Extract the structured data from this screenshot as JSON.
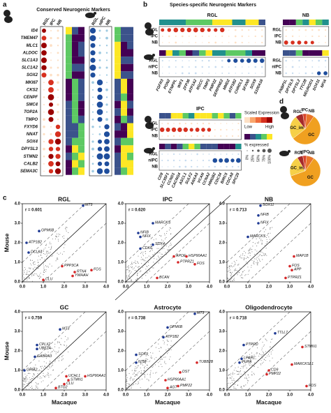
{
  "panel_a": {
    "label": "a",
    "title": "Conserved Neurogenic Markers",
    "genes": [
      "ID4",
      "TMEM47",
      "MLC1",
      "ALDOC",
      "SLC1A3",
      "SLC1A2",
      "SOX2",
      "MKI67",
      "CKS2",
      "CENPF",
      "SMC4",
      "TOP2A",
      "TMPO",
      "FXYD6",
      "NNAT",
      "SOX4",
      "DPYSL3",
      "STMN2",
      "CALB2",
      "SEMA3C"
    ],
    "monkey_columns": [
      "RGL",
      "IPC",
      "NB"
    ],
    "mouse_columns": [
      "RGL",
      "nIPC",
      "NB"
    ]
  },
  "panel_b": {
    "label": "b",
    "title": "Species-specific Neurogenic Markers",
    "blocks": [
      {
        "title": "RGL",
        "genes": [
          "FGFR3",
          "PON2",
          "ETNPPL",
          "WIF1",
          "ZFP36",
          "ATP1A2",
          "RGCC",
          "TIMP3",
          "PMP22",
          "SERPINE2",
          "MMD2",
          "ATP1B2",
          "CHRDL1",
          "SFXN5",
          "SOX9",
          "S100A16"
        ]
      },
      {
        "title": "NB",
        "genes": [
          "FNBP1L",
          "DPYSL5",
          "DPYSL2",
          "TTC28",
          "NEUROD1",
          "SOX11",
          "NFIA"
        ]
      },
      {
        "title": "IPC",
        "genes": [
          "CD9",
          "SLC35F1",
          "CCND1",
          "CACNG4",
          "ASCL1",
          "SULF2",
          "ANXA5",
          "VCAN",
          "CCNA2",
          "HMGB2",
          "CDC34",
          "BIRC5",
          "CDCA8",
          "SPC25"
        ]
      }
    ],
    "monkey_rows": [
      "RGL",
      "IPC",
      "NB"
    ],
    "mouse_rows": [
      "RGL",
      "nIPC",
      "NB"
    ],
    "legend_expression": {
      "title": "Scaled Expression",
      "low": "Low",
      "high": "High"
    },
    "legend_percent": {
      "title": "% expressed",
      "labels": [
        "0%",
        "25%",
        "50%",
        "75%",
        "100%"
      ]
    }
  },
  "panel_c_label": "c",
  "panel_d_label": "d",
  "chart_data": [
    {
      "type": "scatter",
      "title": "RGL",
      "annotation": "r = 0.601",
      "ylabel": "Mouse",
      "xlim": [
        0,
        4
      ],
      "ylim": [
        0,
        4
      ],
      "xticks": [
        {
          "value": 0,
          "label": "0.0"
        },
        {
          "value": 1,
          "label": "1.0"
        },
        {
          "value": 2,
          "label": "2.0"
        },
        {
          "value": 3,
          "label": "3.0"
        },
        {
          "value": 4,
          "label": "4.0"
        }
      ],
      "yticks": [
        {
          "value": 0,
          "label": "0.0"
        },
        {
          "value": 1,
          "label": "1.0"
        },
        {
          "value": 2,
          "label": "2.0"
        },
        {
          "value": 3,
          "label": "3.0"
        },
        {
          "value": 4,
          "label": "4.0"
        }
      ],
      "series": [
        {
          "color": "#1f3a93",
          "labels": [
            "MT3",
            "GPM6B",
            "ATP1B2",
            "DCLK1"
          ],
          "x": [
            2.9,
            0.8,
            0.2,
            0.3
          ],
          "y": [
            3.9,
            2.6,
            2.0,
            1.5
          ]
        },
        {
          "color": "#d62728",
          "labels": [
            "PPP3CA",
            "FOS",
            "RTN4",
            "YWHAH",
            "CLU"
          ],
          "x": [
            1.9,
            3.3,
            2.5,
            2.4,
            1.0
          ],
          "y": [
            0.8,
            0.6,
            0.5,
            0.3,
            0.1
          ]
        }
      ]
    },
    {
      "type": "scatter",
      "title": "IPC",
      "annotation": "r = 0.620",
      "xlim": [
        0,
        4
      ],
      "ylim": [
        0,
        4
      ],
      "xticks": [
        {
          "value": 0,
          "label": "0.0"
        },
        {
          "value": 1,
          "label": "1.0"
        },
        {
          "value": 2,
          "label": "2.0"
        },
        {
          "value": 3,
          "label": "3.0"
        },
        {
          "value": 4,
          "label": "4.0"
        }
      ],
      "yticks": [
        {
          "value": 0,
          "label": "0.0"
        },
        {
          "value": 1,
          "label": "1.0"
        },
        {
          "value": 2,
          "label": "2.0"
        },
        {
          "value": 3,
          "label": "3.0"
        },
        {
          "value": 4,
          "label": "4.0"
        }
      ],
      "series": [
        {
          "color": "#1f3a93",
          "labels": [
            "MARCKS",
            "NFIB",
            "NFIX",
            "SOX4",
            "CDK6"
          ],
          "x": [
            1.3,
            0.6,
            0.7,
            1.3,
            0.7
          ],
          "y": [
            3.0,
            2.5,
            2.3,
            1.9,
            1.7
          ]
        },
        {
          "color": "#d62728",
          "labels": [
            "APOE",
            "HSP90AA1",
            "PTPRZ1",
            "FOS",
            "BCAN"
          ],
          "x": [
            2.3,
            2.9,
            2.5,
            3.3,
            1.5
          ],
          "y": [
            1.3,
            1.3,
            1.0,
            0.9,
            0.2
          ]
        }
      ]
    },
    {
      "type": "scatter",
      "title": "NB",
      "annotation": "r = 0.713",
      "xlim": [
        0,
        4
      ],
      "ylim": [
        0,
        4
      ],
      "xticks": [
        {
          "value": 0,
          "label": "0.0"
        },
        {
          "value": 1,
          "label": "1.0"
        },
        {
          "value": 2,
          "label": "2.0"
        },
        {
          "value": 3,
          "label": "3.0"
        },
        {
          "value": 4,
          "label": "4.0"
        }
      ],
      "yticks": [
        {
          "value": 0,
          "label": "0.0"
        },
        {
          "value": 1,
          "label": "1.0"
        },
        {
          "value": 2,
          "label": "2.0"
        },
        {
          "value": 3,
          "label": "3.0"
        },
        {
          "value": 4,
          "label": "4.0"
        }
      ],
      "series": [
        {
          "color": "#1f3a93",
          "labels": [
            "SOX11",
            "NFIB",
            "NFIX",
            "MARCKS"
          ],
          "x": [
            1.6,
            1.5,
            1.5,
            1.0
          ],
          "y": [
            3.9,
            3.4,
            3.0,
            2.3
          ]
        },
        {
          "color": "#d62728",
          "labels": [
            "MAP1B",
            "FOS",
            "APP",
            "PTPRZ1"
          ],
          "x": [
            3.2,
            3.0,
            3.1,
            2.8
          ],
          "y": [
            1.3,
            0.8,
            0.6,
            0.2
          ]
        }
      ]
    },
    {
      "type": "scatter",
      "title": "GC",
      "annotation": "r = 0.759",
      "xlabel": "Macaque",
      "ylabel": "Mouse",
      "xlim": [
        0,
        4
      ],
      "ylim": [
        0,
        4
      ],
      "xticks": [
        {
          "value": 0,
          "label": "0.0"
        },
        {
          "value": 1,
          "label": "1.0"
        },
        {
          "value": 2,
          "label": "2.0"
        },
        {
          "value": 3,
          "label": "3.0"
        },
        {
          "value": 4,
          "label": "4.0"
        }
      ],
      "yticks": [
        {
          "value": 0,
          "label": "0.0"
        },
        {
          "value": 1,
          "label": "1.0"
        },
        {
          "value": 2,
          "label": "2.0"
        },
        {
          "value": 3,
          "label": "3.0"
        },
        {
          "value": 4,
          "label": "4.0"
        }
      ],
      "series": [
        {
          "color": "#1f3a93",
          "labels": [
            "MT3",
            "CPLX2",
            "UBE2A",
            "GABRA3",
            "GRIA2"
          ],
          "x": [
            1.8,
            0.7,
            0.7,
            0.6,
            0.1
          ],
          "y": [
            3.1,
            2.3,
            2.1,
            1.7,
            1.0
          ]
        },
        {
          "color": "#d62728",
          "labels": [
            "HSP90AA1",
            "UCHL1",
            "STMN1",
            "CLU",
            "BTG2"
          ],
          "x": [
            3.0,
            2.1,
            2.2,
            2.0,
            1.6
          ],
          "y": [
            0.7,
            0.7,
            0.5,
            0.3,
            0.1
          ]
        }
      ]
    },
    {
      "type": "scatter",
      "title": "Astrocyte",
      "annotation": "r = 0.738",
      "xlabel": "Macaque",
      "xlim": [
        0,
        4
      ],
      "ylim": [
        0,
        4
      ],
      "xticks": [
        {
          "value": 0,
          "label": "0.0"
        },
        {
          "value": 1,
          "label": "1.0"
        },
        {
          "value": 2,
          "label": "2.0"
        },
        {
          "value": 3,
          "label": "3.0"
        },
        {
          "value": 4,
          "label": "4.0"
        }
      ],
      "yticks": [
        {
          "value": 0,
          "label": "0.0"
        },
        {
          "value": 1,
          "label": "1.0"
        },
        {
          "value": 2,
          "label": "2.0"
        },
        {
          "value": 3,
          "label": "3.0"
        },
        {
          "value": 4,
          "label": "4.0"
        }
      ],
      "series": [
        {
          "color": "#1f3a93",
          "labels": [
            "MT3",
            "GPM6B",
            "ATP1B2",
            "SOX9",
            "NTM"
          ],
          "x": [
            3.3,
            2.0,
            1.8,
            0.5,
            0.5
          ],
          "y": [
            3.9,
            3.2,
            2.7,
            1.8,
            1.4
          ]
        },
        {
          "color": "#d62728",
          "labels": [
            "TUBB2B",
            "DST",
            "HSP90AA1",
            "AGT",
            "PMP22"
          ],
          "x": [
            3.4,
            2.6,
            1.9,
            2.0,
            2.5
          ],
          "y": [
            1.4,
            0.9,
            0.5,
            0.1,
            0.2
          ]
        }
      ]
    },
    {
      "type": "scatter",
      "title": "Oligodendrocyte",
      "annotation": "r = 0.718",
      "xlabel": "Macaque",
      "xlim": [
        0,
        4
      ],
      "ylim": [
        0,
        4
      ],
      "xticks": [
        {
          "value": 0,
          "label": "0.0"
        },
        {
          "value": 1,
          "label": "1.0"
        },
        {
          "value": 2,
          "label": "2.0"
        },
        {
          "value": 3,
          "label": "3.0"
        },
        {
          "value": 4,
          "label": "4.0"
        }
      ],
      "yticks": [
        {
          "value": 0,
          "label": "0.0"
        },
        {
          "value": 1,
          "label": "1.0"
        },
        {
          "value": 2,
          "label": "2.0"
        },
        {
          "value": 3,
          "label": "3.0"
        },
        {
          "value": 4,
          "label": "4.0"
        }
      ],
      "series": [
        {
          "color": "#1f3a93",
          "labels": [
            "TTLL7",
            "PTPRD",
            "LPAR1",
            "PURA"
          ],
          "x": [
            2.3,
            0.8,
            0.7,
            0.6
          ],
          "y": [
            2.9,
            2.3,
            1.6,
            1.4
          ]
        },
        {
          "color": "#d62728",
          "labels": [
            "STMN1",
            "MARCKSL1",
            "CD9",
            "PMP22",
            "FOS"
          ],
          "x": [
            3.6,
            3.1,
            2.0,
            1.9,
            3.8
          ],
          "y": [
            2.2,
            1.3,
            1.0,
            0.8,
            0.2
          ]
        }
      ]
    },
    {
      "type": "pie",
      "categories": [
        "GC",
        "GC_im",
        "RGL",
        "IPC",
        "NB"
      ],
      "values": [
        55,
        25,
        8,
        4,
        8
      ],
      "colors": [
        "#f0a020",
        "#f6d048",
        "#a52a2a",
        "#d9452b",
        "#e8742a"
      ]
    },
    {
      "type": "pie",
      "categories": [
        "GC",
        "GC_im",
        "RGL",
        "nIPC",
        "NB"
      ],
      "values": [
        60,
        22,
        6,
        4,
        8
      ],
      "colors": [
        "#f0a020",
        "#f6d048",
        "#a52a2a",
        "#d9452b",
        "#e8742a"
      ]
    }
  ]
}
